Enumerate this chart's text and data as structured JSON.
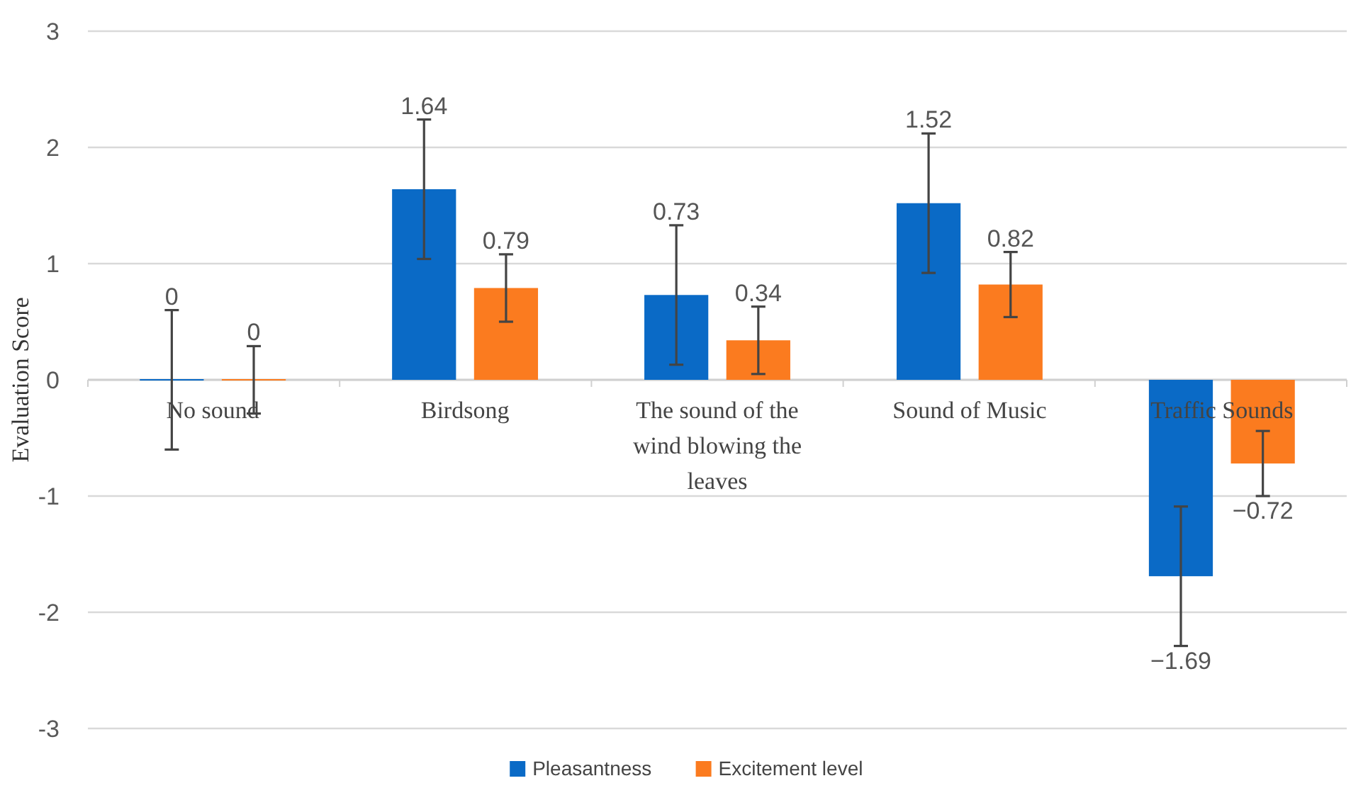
{
  "chart_data": {
    "type": "bar",
    "ylabel": "Evaluation Score",
    "categories": [
      "No sound",
      "Birdsong",
      "The sound of the wind blowing the leaves",
      "Sound of Music",
      "Traffic Sounds"
    ],
    "series": [
      {
        "name": "Pleasantness",
        "color": "#0a6ac6",
        "values": [
          0,
          1.64,
          0.73,
          1.52,
          -1.69
        ],
        "errors": [
          0.6,
          0.6,
          0.6,
          0.6,
          0.6
        ]
      },
      {
        "name": "Excitement level",
        "color": "#fb7b1f",
        "values": [
          0,
          0.79,
          0.34,
          0.82,
          -0.72
        ],
        "errors": [
          0.29,
          0.29,
          0.29,
          0.28,
          0.28
        ]
      }
    ],
    "ylim": [
      -3,
      3
    ],
    "yticks": [
      -3,
      -2,
      -1,
      0,
      1,
      2,
      3
    ],
    "grid": "y",
    "legend": "bottom",
    "data_labels": true
  }
}
